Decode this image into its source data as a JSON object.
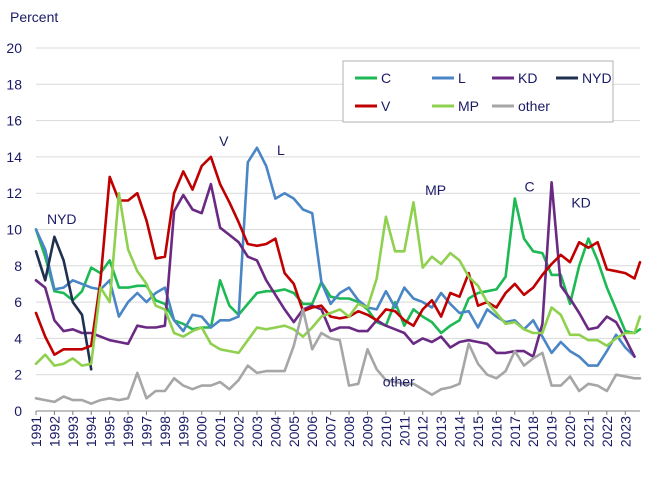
{
  "chart_data": {
    "type": "line",
    "ylabel": "Percent",
    "ylim": [
      0,
      20
    ],
    "yticks": [
      "0",
      "2",
      "4",
      "6",
      "8",
      "10",
      "12",
      "14",
      "16",
      "18",
      "20"
    ],
    "xlim": [
      1991,
      2023.8
    ],
    "xticks": [
      "1991",
      "1992",
      "1993",
      "1994",
      "1995",
      "1996",
      "1997",
      "1998",
      "1999",
      "2000",
      "2001",
      "2002",
      "2003",
      "2004",
      "2005",
      "2006",
      "2007",
      "2008",
      "2009",
      "2010",
      "2011",
      "2012",
      "2013",
      "2014",
      "2015",
      "2016",
      "2017",
      "2018",
      "2019",
      "2020",
      "2021",
      "2022",
      "2023"
    ],
    "grid": "horizontal",
    "legend_position": "top-right",
    "series": [
      {
        "name": "C",
        "color": "#1db954",
        "x": [
          1991,
          1991.5,
          1992,
          1992.5,
          1993,
          1993.5,
          1994,
          1994.5,
          1995,
          1995.5,
          1996,
          1996.5,
          1997,
          1997.5,
          1998,
          1998.5,
          1999,
          1999.5,
          2000,
          2000.5,
          2001,
          2001.5,
          2002,
          2002.5,
          2003,
          2003.5,
          2004,
          2004.5,
          2005,
          2005.5,
          2006,
          2006.5,
          2007,
          2007.5,
          2008,
          2008.5,
          2009,
          2009.5,
          2010,
          2010.5,
          2011,
          2011.5,
          2012,
          2012.5,
          2013,
          2013.5,
          2014,
          2014.5,
          2015,
          2015.5,
          2016,
          2016.5,
          2017,
          2017.5,
          2018,
          2018.5,
          2019,
          2019.5,
          2020,
          2020.5,
          2021,
          2021.5,
          2022,
          2022.5,
          2023,
          2023.5,
          2023.8
        ],
        "y": [
          10,
          8.5,
          6.6,
          6.5,
          6.1,
          6.6,
          7.9,
          7.6,
          8.3,
          6.8,
          6.8,
          6.9,
          6.9,
          6.1,
          5.9,
          5,
          4.8,
          4.5,
          4.6,
          4.6,
          7.2,
          5.8,
          5.3,
          5.9,
          6.5,
          6.6,
          6.6,
          6.7,
          6.5,
          5.9,
          5.9,
          7.1,
          6.3,
          6.2,
          6.2,
          6,
          5.6,
          4.9,
          4.7,
          6,
          4.7,
          5.6,
          5.2,
          4.9,
          4.3,
          4.7,
          5,
          6.2,
          6.5,
          6.6,
          6.7,
          7.4,
          11.7,
          9.5,
          8.8,
          8.7,
          7.5,
          7.5,
          5.9,
          8,
          9.5,
          8.3,
          6.8,
          5.6,
          4.4,
          4.3,
          4.5
        ]
      },
      {
        "name": "L",
        "color": "#4a86c5",
        "x": [
          1991,
          1991.5,
          1992,
          1992.5,
          1993,
          1993.5,
          1994,
          1994.5,
          1995,
          1995.5,
          1996,
          1996.5,
          1997,
          1997.5,
          1998,
          1998.5,
          1999,
          1999.5,
          2000,
          2000.5,
          2001,
          2001.5,
          2002,
          2002.5,
          2003,
          2003.5,
          2004,
          2004.5,
          2005,
          2005.5,
          2006,
          2006.5,
          2007,
          2007.5,
          2008,
          2008.5,
          2009,
          2009.5,
          2010,
          2010.5,
          2011,
          2011.5,
          2012,
          2012.5,
          2013,
          2013.5,
          2014,
          2014.5,
          2015,
          2015.5,
          2016,
          2016.5,
          2017,
          2017.5,
          2018,
          2018.5,
          2019,
          2019.5,
          2020,
          2020.5,
          2021,
          2021.5,
          2022,
          2022.5,
          2023,
          2023.5
        ],
        "y": [
          10,
          8.9,
          6.7,
          6.8,
          7.2,
          7,
          6.8,
          6.7,
          7.2,
          5.2,
          6,
          6.5,
          6,
          6.5,
          6.8,
          5,
          4.4,
          5.3,
          5.2,
          4.6,
          5,
          5,
          5.2,
          13.7,
          14.5,
          13.5,
          11.7,
          12,
          11.7,
          11.1,
          10.9,
          7.1,
          5.9,
          6.5,
          6.8,
          6.1,
          5.7,
          5.6,
          6.6,
          5.7,
          6.8,
          6.2,
          6,
          5.7,
          6.5,
          5.9,
          5.4,
          5.5,
          4.6,
          5.6,
          5.2,
          4.9,
          5,
          4.5,
          5,
          4.1,
          3.2,
          3.8,
          3.3,
          3,
          2.5,
          2.5,
          3.3,
          4.2,
          3.5,
          3
        ]
      },
      {
        "name": "KD",
        "color": "#6a2a84",
        "x": [
          1991,
          1991.5,
          1992,
          1992.5,
          1993,
          1993.5,
          1994,
          1994.5,
          1995,
          1995.5,
          1996,
          1996.5,
          1997,
          1997.5,
          1998,
          1998.5,
          1999,
          1999.5,
          2000,
          2000.5,
          2001,
          2001.5,
          2002,
          2002.5,
          2003,
          2003.5,
          2004,
          2004.5,
          2005,
          2005.5,
          2006,
          2006.5,
          2007,
          2007.5,
          2008,
          2008.5,
          2009,
          2009.5,
          2010,
          2010.5,
          2011,
          2011.5,
          2012,
          2012.5,
          2013,
          2013.5,
          2014,
          2014.5,
          2015,
          2015.5,
          2016,
          2016.5,
          2017,
          2017.5,
          2018,
          2018.5,
          2019,
          2019.5,
          2020,
          2020.5,
          2021,
          2021.5,
          2022,
          2022.5,
          2023,
          2023.5
        ],
        "y": [
          7.2,
          6.8,
          5,
          4.4,
          4.5,
          4.3,
          4.3,
          4.1,
          3.9,
          3.8,
          3.7,
          4.7,
          4.6,
          4.6,
          4.7,
          11,
          11.9,
          11.1,
          10.9,
          12.5,
          10.1,
          9.7,
          9.3,
          8.5,
          8.3,
          7.2,
          6.4,
          5.6,
          4.9,
          5.6,
          5.8,
          5.6,
          4.4,
          4.6,
          4.6,
          4.4,
          4.4,
          5,
          4.7,
          4.5,
          4.3,
          3.7,
          4,
          3.8,
          4.1,
          3.5,
          3.8,
          3.9,
          3.8,
          3.7,
          3.2,
          3.2,
          3.3,
          3.3,
          3,
          4.8,
          12.6,
          6.9,
          6.2,
          5.4,
          4.5,
          4.6,
          5.2,
          4.9,
          4,
          3
        ]
      },
      {
        "name": "NYD",
        "color": "#1f3050",
        "x": [
          1991,
          1991.5,
          1992,
          1992.5,
          1993,
          1993.5,
          1994
        ],
        "y": [
          8.8,
          7.2,
          9.6,
          8.3,
          6,
          5.3,
          2.3
        ]
      },
      {
        "name": "V",
        "color": "#c00000",
        "x": [
          1991,
          1991.5,
          1992,
          1992.5,
          1993,
          1993.5,
          1994,
          1994.5,
          1995,
          1995.5,
          1996,
          1996.5,
          1997,
          1997.5,
          1998,
          1998.5,
          1999,
          1999.5,
          2000,
          2000.5,
          2001,
          2001.5,
          2002,
          2002.5,
          2003,
          2003.5,
          2004,
          2004.5,
          2005,
          2005.5,
          2006,
          2006.5,
          2007,
          2007.5,
          2008,
          2008.5,
          2009,
          2009.5,
          2010,
          2010.5,
          2011,
          2011.5,
          2012,
          2012.5,
          2013,
          2013.5,
          2014,
          2014.5,
          2015,
          2015.5,
          2016,
          2016.5,
          2017,
          2017.5,
          2018,
          2018.5,
          2019,
          2019.5,
          2020,
          2020.5,
          2021,
          2021.5,
          2022,
          2022.5,
          2023,
          2023.5,
          2023.8
        ],
        "y": [
          5.4,
          4.1,
          3.1,
          3.4,
          3.4,
          3.4,
          3.6,
          7.2,
          12.9,
          11.6,
          11.6,
          12,
          10.5,
          8.4,
          8.5,
          12,
          13.2,
          12.2,
          13.5,
          14,
          12.5,
          11.5,
          10.4,
          9.2,
          9.1,
          9.2,
          9.5,
          7.6,
          7,
          5.5,
          5.7,
          5.8,
          5.2,
          5.1,
          5.2,
          5.5,
          5.3,
          5,
          5.6,
          5.5,
          5,
          4.7,
          5.6,
          6.1,
          5.2,
          6.5,
          6.3,
          7.6,
          5.8,
          6,
          5.7,
          6.5,
          7,
          6.4,
          6.8,
          7.5,
          8.1,
          8.6,
          8.2,
          9.3,
          9,
          9.3,
          7.8,
          7.7,
          7.6,
          7.3,
          8.2
        ]
      },
      {
        "name": "MP",
        "color": "#8fd14f",
        "x": [
          1991,
          1991.5,
          1992,
          1992.5,
          1993,
          1993.5,
          1994,
          1994.5,
          1995,
          1995.5,
          1996,
          1996.5,
          1997,
          1997.5,
          1998,
          1998.5,
          1999,
          1999.5,
          2000,
          2000.5,
          2001,
          2001.5,
          2002,
          2002.5,
          2003,
          2003.5,
          2004,
          2004.5,
          2005,
          2005.5,
          2006,
          2006.5,
          2007,
          2007.5,
          2008,
          2008.5,
          2009,
          2009.5,
          2010,
          2010.5,
          2011,
          2011.5,
          2012,
          2012.5,
          2013,
          2013.5,
          2014,
          2014.5,
          2015,
          2015.5,
          2016,
          2016.5,
          2017,
          2017.5,
          2018,
          2018.5,
          2019,
          2019.5,
          2020,
          2020.5,
          2021,
          2021.5,
          2022,
          2022.5,
          2023,
          2023.5,
          2023.8
        ],
        "y": [
          2.6,
          3.1,
          2.5,
          2.6,
          2.9,
          2.5,
          2.6,
          6.8,
          6,
          12,
          8.9,
          7.7,
          7,
          5.8,
          5.6,
          4.3,
          4.1,
          4.4,
          4.6,
          3.7,
          3.4,
          3.3,
          3.2,
          3.9,
          4.6,
          4.5,
          4.6,
          4.7,
          4.5,
          4.1,
          4.6,
          5.2,
          5.4,
          5.6,
          5.2,
          5.9,
          5.7,
          7.3,
          10.7,
          8.8,
          8.8,
          11.5,
          7.9,
          8.5,
          8.1,
          8.7,
          8.3,
          7.4,
          6.9,
          6,
          5.4,
          4.8,
          4.9,
          4.5,
          4.3,
          4.3,
          5.7,
          5.3,
          4.2,
          4.2,
          3.9,
          3.9,
          3.6,
          4,
          4.3,
          4.3,
          5.2
        ]
      },
      {
        "name": "other",
        "color": "#a6a6a6",
        "x": [
          1991,
          1991.5,
          1992,
          1992.5,
          1993,
          1993.5,
          1994,
          1994.5,
          1995,
          1995.5,
          1996,
          1996.5,
          1997,
          1997.5,
          1998,
          1998.5,
          1999,
          1999.5,
          2000,
          2000.5,
          2001,
          2001.5,
          2002,
          2002.5,
          2003,
          2003.5,
          2004,
          2004.5,
          2005,
          2005.5,
          2006,
          2006.5,
          2007,
          2007.5,
          2008,
          2008.5,
          2009,
          2009.5,
          2010,
          2010.5,
          2011,
          2011.5,
          2012,
          2012.5,
          2013,
          2013.5,
          2014,
          2014.5,
          2015,
          2015.5,
          2016,
          2016.5,
          2017,
          2017.5,
          2018,
          2018.5,
          2019,
          2019.5,
          2020,
          2020.5,
          2021,
          2021.5,
          2022,
          2022.5,
          2023,
          2023.5,
          2023.8
        ],
        "y": [
          0.7,
          0.6,
          0.5,
          0.8,
          0.6,
          0.6,
          0.4,
          0.6,
          0.7,
          0.6,
          0.7,
          2.1,
          0.7,
          1.1,
          1.1,
          1.8,
          1.4,
          1.2,
          1.4,
          1.4,
          1.6,
          1.2,
          1.7,
          2.5,
          2.1,
          2.2,
          2.2,
          2.2,
          3.6,
          5.6,
          3.4,
          4.3,
          4,
          3.9,
          1.4,
          1.5,
          3.4,
          2.3,
          1.7,
          1.6,
          1.5,
          1.5,
          1.2,
          0.9,
          1.2,
          1.3,
          1.5,
          3.7,
          2.6,
          2,
          1.8,
          2.2,
          3.3,
          2.5,
          2.9,
          3.2,
          1.4,
          1.4,
          1.9,
          1.1,
          1.5,
          1.4,
          1.1,
          2,
          1.9,
          1.8,
          1.8
        ]
      }
    ],
    "annotations": [
      {
        "text": "NYD",
        "x": 1992.4,
        "y": 10.3
      },
      {
        "text": "V",
        "x": 2001.2,
        "y": 14.6
      },
      {
        "text": "L",
        "x": 2004.3,
        "y": 14.1
      },
      {
        "text": "MP",
        "x": 2012.7,
        "y": 11.9
      },
      {
        "text": "C",
        "x": 2017.8,
        "y": 12.1
      },
      {
        "text": "KD",
        "x": 2020.6,
        "y": 11.2
      },
      {
        "text": "other",
        "x": 2010.7,
        "y": 1.35
      }
    ]
  }
}
